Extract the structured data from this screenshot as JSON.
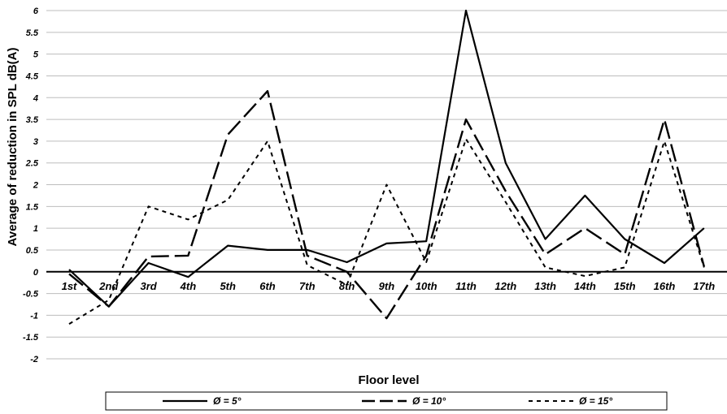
{
  "chart_data": {
    "type": "line",
    "title": "",
    "xlabel": "Floor level",
    "ylabel": "Average of reduction in SPL dB(A)",
    "categories": [
      "1st",
      "2nd",
      "3rd",
      "4th",
      "5th",
      "6th",
      "7th",
      "8th",
      "9th",
      "10th",
      "11th",
      "12th",
      "13th",
      "14th",
      "15th",
      "16th",
      "17th"
    ],
    "ylim": [
      -2,
      6
    ],
    "yticks": [
      "6",
      "5.5",
      "5",
      "4.5",
      "4",
      "3.5",
      "3",
      "2.5",
      "2",
      "1.5",
      "1",
      "0.5",
      "0",
      "-0.5",
      "-1",
      "-1.5",
      "-2"
    ],
    "grid": true,
    "legend_position": "bottom",
    "series": [
      {
        "name": "Ø = 5°",
        "style": "solid",
        "values": [
          0.05,
          -0.8,
          0.2,
          -0.12,
          0.6,
          0.5,
          0.5,
          0.22,
          0.65,
          0.7,
          6.0,
          2.5,
          0.75,
          1.75,
          0.75,
          0.2,
          1.0
        ]
      },
      {
        "name": "Ø = 10°",
        "style": "longdash",
        "values": [
          -0.05,
          -0.8,
          0.35,
          0.37,
          3.15,
          4.15,
          0.37,
          0.0,
          -1.07,
          0.37,
          3.5,
          1.85,
          0.4,
          1.0,
          0.4,
          3.5,
          0.12
        ]
      },
      {
        "name": "Ø = 15°",
        "style": "shortdash",
        "values": [
          -1.2,
          -0.65,
          1.5,
          1.2,
          1.65,
          3.0,
          0.15,
          -0.3,
          2.0,
          0.22,
          3.05,
          1.6,
          0.1,
          -0.1,
          0.1,
          3.0,
          0.1
        ]
      }
    ],
    "colors": {
      "line": "#000000",
      "grid": "#bdbdbd",
      "axis": "#000000"
    }
  }
}
